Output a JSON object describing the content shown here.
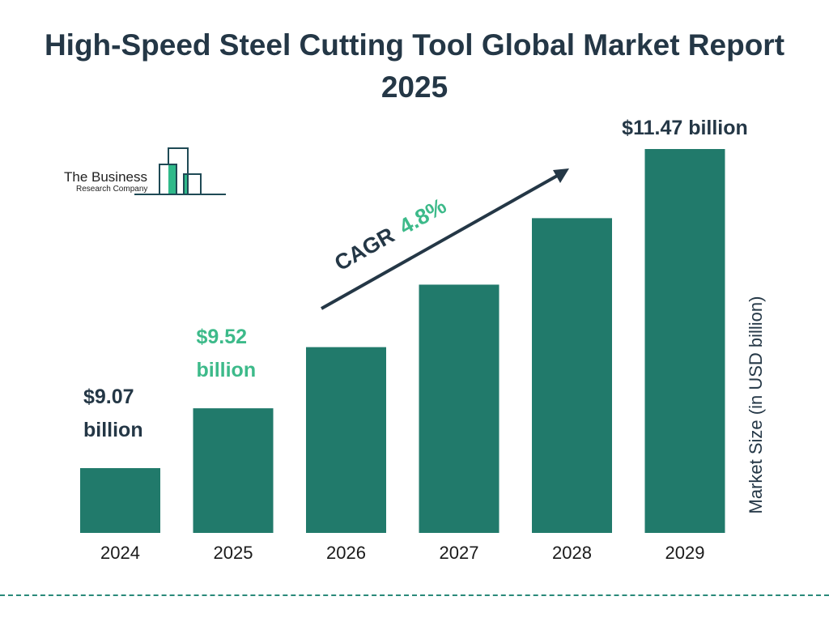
{
  "title": "High-Speed Steel Cutting Tool Global Market Report 2025",
  "logo": {
    "line1": "The Business",
    "line2": "Research Company"
  },
  "colors": {
    "bar": "#217a6b",
    "title": "#243746",
    "accent": "#3dba8a"
  },
  "cagr": {
    "label": "CAGR",
    "value": "4.8%"
  },
  "chart_data": {
    "type": "bar",
    "title": "High-Speed Steel Cutting Tool Global Market Report 2025",
    "categories": [
      "2024",
      "2025",
      "2026",
      "2027",
      "2028",
      "2029"
    ],
    "values": [
      9.07,
      9.52,
      9.98,
      10.45,
      10.95,
      11.47
    ],
    "ylabel": "Market Size (in USD billion)",
    "xlabel": "",
    "grid": false,
    "data_labels": [
      {
        "category": "2024",
        "line1": "$9.07",
        "line2": "billion",
        "color": "#243746"
      },
      {
        "category": "2025",
        "line1": "$9.52",
        "line2": "billion",
        "color": "#3dba8a"
      },
      {
        "category": "2029",
        "line1": "$11.47 billion",
        "line2": "",
        "color": "#243746"
      }
    ]
  }
}
